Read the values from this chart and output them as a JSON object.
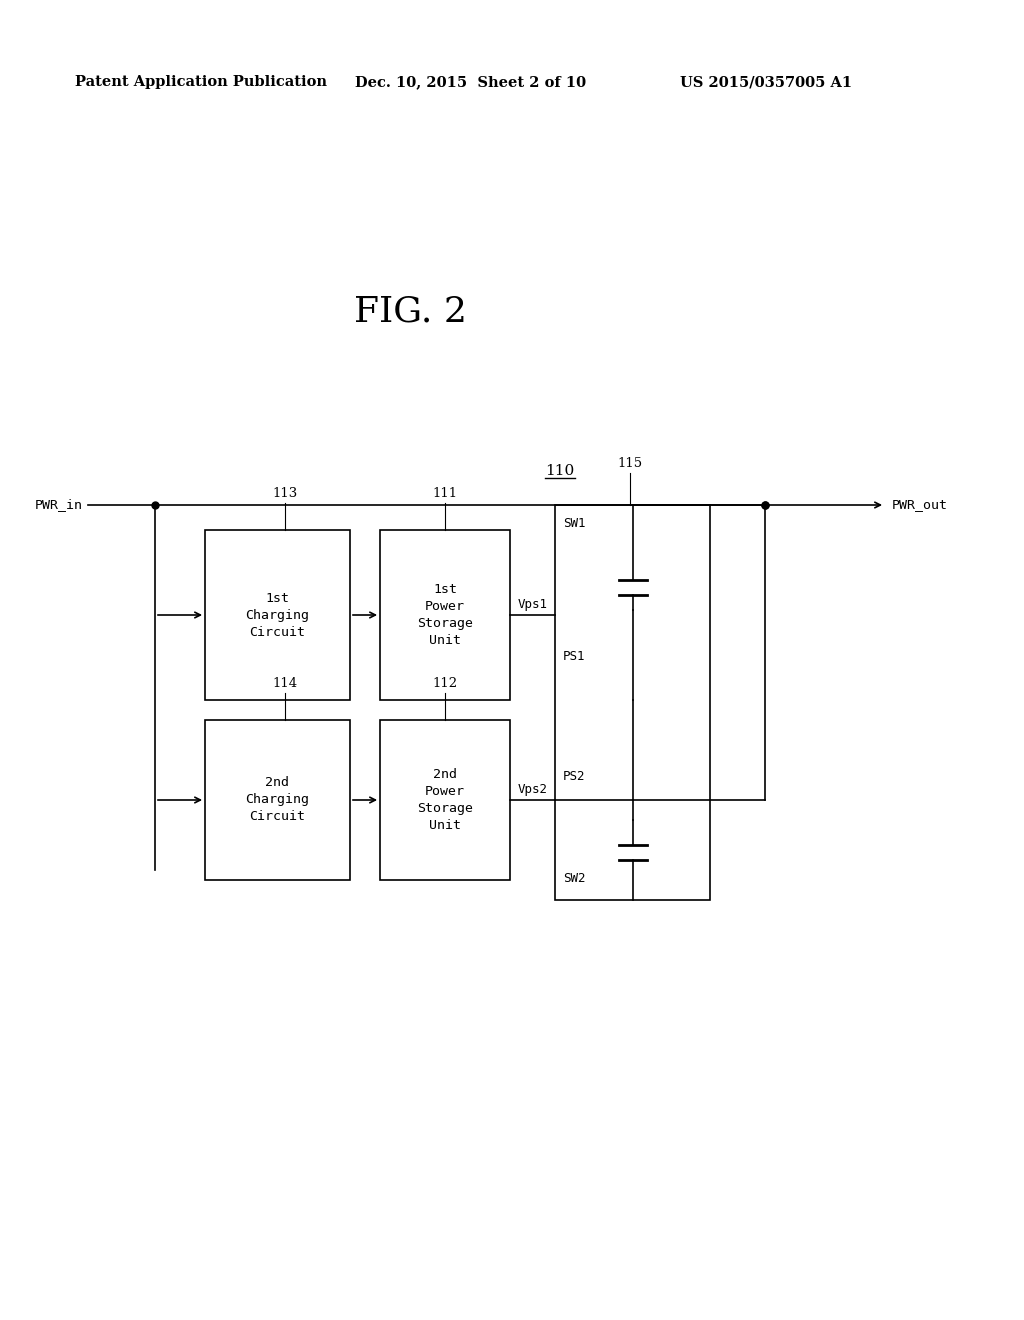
{
  "title": "FIG. 2",
  "header_left": "Patent Application Publication",
  "header_mid": "Dec. 10, 2015  Sheet 2 of 10",
  "header_right": "US 2015/0357005 A1",
  "bg_color": "#ffffff",
  "fig_label": "110",
  "pwr_in": "PWR_in",
  "pwr_out": "PWR_out",
  "box1_label": "1st\nCharging\nCircuit",
  "box2_label": "1st\nPower\nStorage\nUnit",
  "box3_label": "2nd\nCharging\nCircuit",
  "box4_label": "2nd\nPower\nStorage\nUnit",
  "ref_113": "113",
  "ref_111": "111",
  "ref_114": "114",
  "ref_112": "112",
  "ref_115": "115",
  "vps1": "Vps1",
  "vps2": "Vps2",
  "sw1": "SW1",
  "sw2": "SW2",
  "ps1": "PS1",
  "ps2": "PS2"
}
